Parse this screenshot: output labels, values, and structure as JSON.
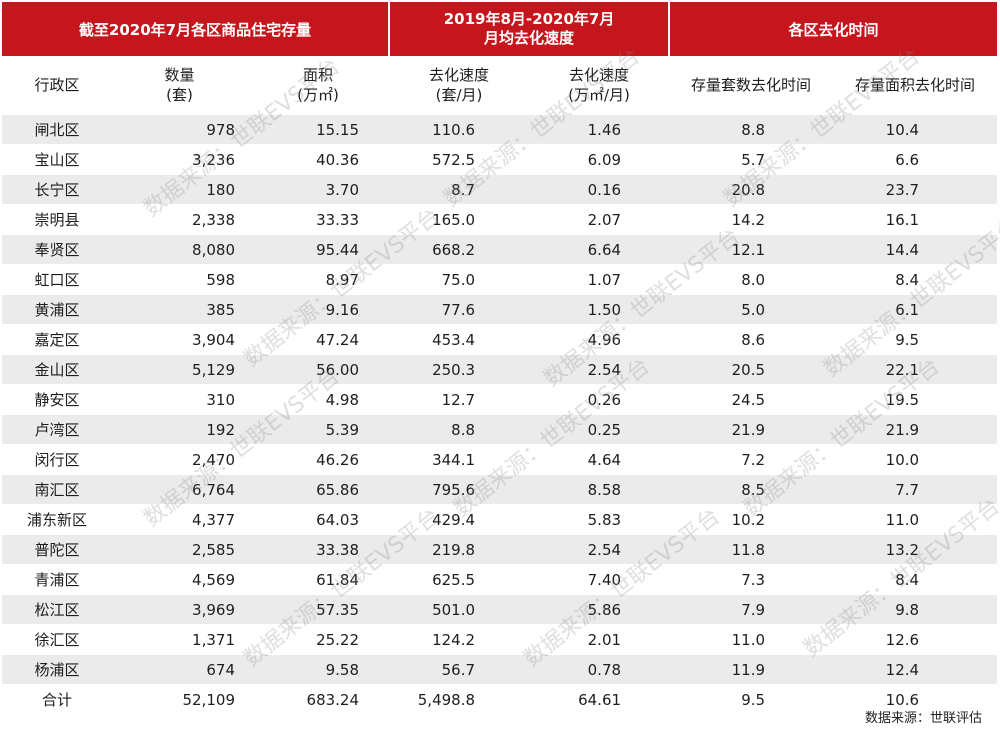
{
  "header": {
    "group_inventory": "截至2020年7月各区商品住宅存量",
    "group_speed_line1": "2019年8月-2020年7月",
    "group_speed_line2": "月均去化速度",
    "group_time": "各区去化时间"
  },
  "columns": [
    {
      "line1": "行政区",
      "line2": ""
    },
    {
      "line1": "数量",
      "line2": "(套)"
    },
    {
      "line1": "面积",
      "line2": "(万㎡)"
    },
    {
      "line1": "去化速度",
      "line2": "(套/月)"
    },
    {
      "line1": "去化速度",
      "line2": "(万㎡/月)"
    },
    {
      "line1": "存量套数去化时间",
      "line2": ""
    },
    {
      "line1": "存量面积去化时间",
      "line2": ""
    }
  ],
  "rows": [
    [
      "闸北区",
      "978",
      "15.15",
      "110.6",
      "1.46",
      "8.8",
      "10.4"
    ],
    [
      "宝山区",
      "3,236",
      "40.36",
      "572.5",
      "6.09",
      "5.7",
      "6.6"
    ],
    [
      "长宁区",
      "180",
      "3.70",
      "8.7",
      "0.16",
      "20.8",
      "23.7"
    ],
    [
      "崇明县",
      "2,338",
      "33.33",
      "165.0",
      "2.07",
      "14.2",
      "16.1"
    ],
    [
      "奉贤区",
      "8,080",
      "95.44",
      "668.2",
      "6.64",
      "12.1",
      "14.4"
    ],
    [
      "虹口区",
      "598",
      "8.97",
      "75.0",
      "1.07",
      "8.0",
      "8.4"
    ],
    [
      "黄浦区",
      "385",
      "9.16",
      "77.6",
      "1.50",
      "5.0",
      "6.1"
    ],
    [
      "嘉定区",
      "3,904",
      "47.24",
      "453.4",
      "4.96",
      "8.6",
      "9.5"
    ],
    [
      "金山区",
      "5,129",
      "56.00",
      "250.3",
      "2.54",
      "20.5",
      "22.1"
    ],
    [
      "静安区",
      "310",
      "4.98",
      "12.7",
      "0.26",
      "24.5",
      "19.5"
    ],
    [
      "卢湾区",
      "192",
      "5.39",
      "8.8",
      "0.25",
      "21.9",
      "21.9"
    ],
    [
      "闵行区",
      "2,470",
      "46.26",
      "344.1",
      "4.64",
      "7.2",
      "10.0"
    ],
    [
      "南汇区",
      "6,764",
      "65.86",
      "795.6",
      "8.58",
      "8.5",
      "7.7"
    ],
    [
      "浦东新区",
      "4,377",
      "64.03",
      "429.4",
      "5.83",
      "10.2",
      "11.0"
    ],
    [
      "普陀区",
      "2,585",
      "33.38",
      "219.8",
      "2.54",
      "11.8",
      "13.2"
    ],
    [
      "青浦区",
      "4,569",
      "61.84",
      "625.5",
      "7.40",
      "7.3",
      "8.4"
    ],
    [
      "松江区",
      "3,969",
      "57.35",
      "501.0",
      "5.86",
      "7.9",
      "9.8"
    ],
    [
      "徐汇区",
      "1,371",
      "25.22",
      "124.2",
      "2.01",
      "11.0",
      "12.6"
    ],
    [
      "杨浦区",
      "674",
      "9.58",
      "56.7",
      "0.78",
      "11.9",
      "12.4"
    ],
    [
      "合计",
      "52,109",
      "683.24",
      "5,498.8",
      "64.61",
      "9.5",
      "10.6"
    ]
  ],
  "source_note": "数据来源：世联评估",
  "watermark": "数据来源：世联EVS平台",
  "colors": {
    "header_bg": "#c4161c",
    "stripe": "#ebebeb"
  }
}
